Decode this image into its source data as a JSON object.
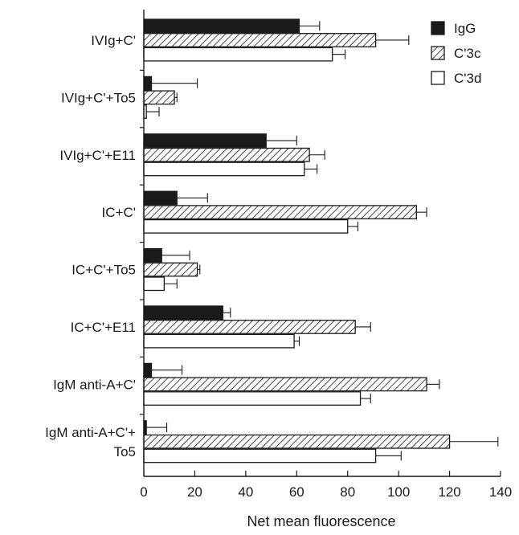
{
  "chart_data": {
    "type": "bar",
    "orientation": "horizontal",
    "categories": [
      "IVIg+C'",
      "IVIg+C'+To5",
      "IVIg+C'+E11",
      "IC+C'",
      "IC+C'+To5",
      "IC+C'+E11",
      "IgM anti-A+C'",
      "IgM anti-A+C'+ To5"
    ],
    "category_lines": [
      [
        "IVIg+C'"
      ],
      [
        "IVIg+C'+To5"
      ],
      [
        "IVIg+C'+E11"
      ],
      [
        "IC+C'"
      ],
      [
        "IC+C'+To5"
      ],
      [
        "IC+C'+E11"
      ],
      [
        "IgM anti-A+C'"
      ],
      [
        "IgM anti-A+C'+",
        "To5"
      ]
    ],
    "series": [
      {
        "name": "IgG",
        "fill": "solid",
        "color": "#1a1a1a",
        "values": [
          61,
          3,
          48,
          13,
          7,
          31,
          3,
          1
        ],
        "errors": [
          8,
          18,
          12,
          12,
          11,
          3,
          12,
          8
        ]
      },
      {
        "name": "C'3c",
        "fill": "hatched",
        "color": "#1a1a1a",
        "values": [
          91,
          12,
          65,
          107,
          21,
          83,
          111,
          120
        ],
        "errors": [
          13,
          1,
          6,
          4,
          1,
          6,
          5,
          19
        ]
      },
      {
        "name": "C'3d",
        "fill": "open",
        "color": "#ffffff",
        "values": [
          74,
          1,
          63,
          80,
          8,
          59,
          85,
          91
        ],
        "errors": [
          5,
          5,
          5,
          4,
          5,
          2,
          4,
          10
        ]
      }
    ],
    "xlabel": "Net mean fluorescence",
    "ylabel": "",
    "xlim": [
      0,
      140
    ],
    "xticks": [
      0,
      20,
      40,
      60,
      80,
      100,
      120,
      140
    ],
    "grid": false,
    "legend_position": "top-right"
  }
}
